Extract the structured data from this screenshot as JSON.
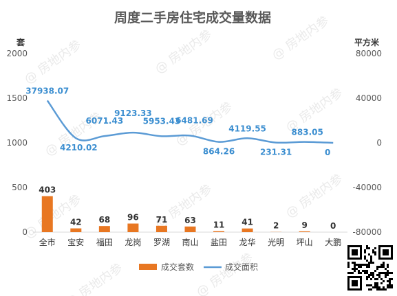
{
  "chart_data": {
    "type": "bar",
    "title": "周度二手房住宅成交量数据",
    "categories": [
      "全市",
      "宝安",
      "福田",
      "龙岗",
      "罗湖",
      "南山",
      "盐田",
      "龙华",
      "光明",
      "坪山",
      "大鹏"
    ],
    "series": [
      {
        "name": "成交套数",
        "type": "bar",
        "axis": "left",
        "color": "#e87722",
        "values": [
          403,
          42,
          68,
          96,
          71,
          63,
          11,
          41,
          2,
          9,
          0
        ],
        "labels": [
          "403",
          "42",
          "68",
          "96",
          "71",
          "63",
          "11",
          "41",
          "2",
          "9",
          "0"
        ]
      },
      {
        "name": "成交面积",
        "type": "line",
        "axis": "right",
        "color": "#5b9bd5",
        "values": [
          37938.07,
          4210.02,
          6071.43,
          9123.33,
          5953.43,
          6481.69,
          864.26,
          4119.55,
          231.31,
          883.05,
          0
        ],
        "labels": [
          "37938.07",
          "4210.02",
          "6071.43",
          "9123.33",
          "5953.43",
          "6481.69",
          "864.26",
          "4119.55",
          "231.31",
          "883.05",
          "0"
        ]
      }
    ],
    "y_left": {
      "label": "套",
      "ylim": [
        0,
        2000
      ],
      "ticks": [
        "0",
        "500",
        "1000",
        "1500",
        "2000"
      ]
    },
    "y_right": {
      "label": "平方米",
      "ylim": [
        -80000,
        80000
      ],
      "ticks": [
        "-80000",
        "-40000",
        "0",
        "40000",
        "80000"
      ]
    },
    "grid": false,
    "legend": "bottom",
    "watermark": "@ 房地内参"
  }
}
